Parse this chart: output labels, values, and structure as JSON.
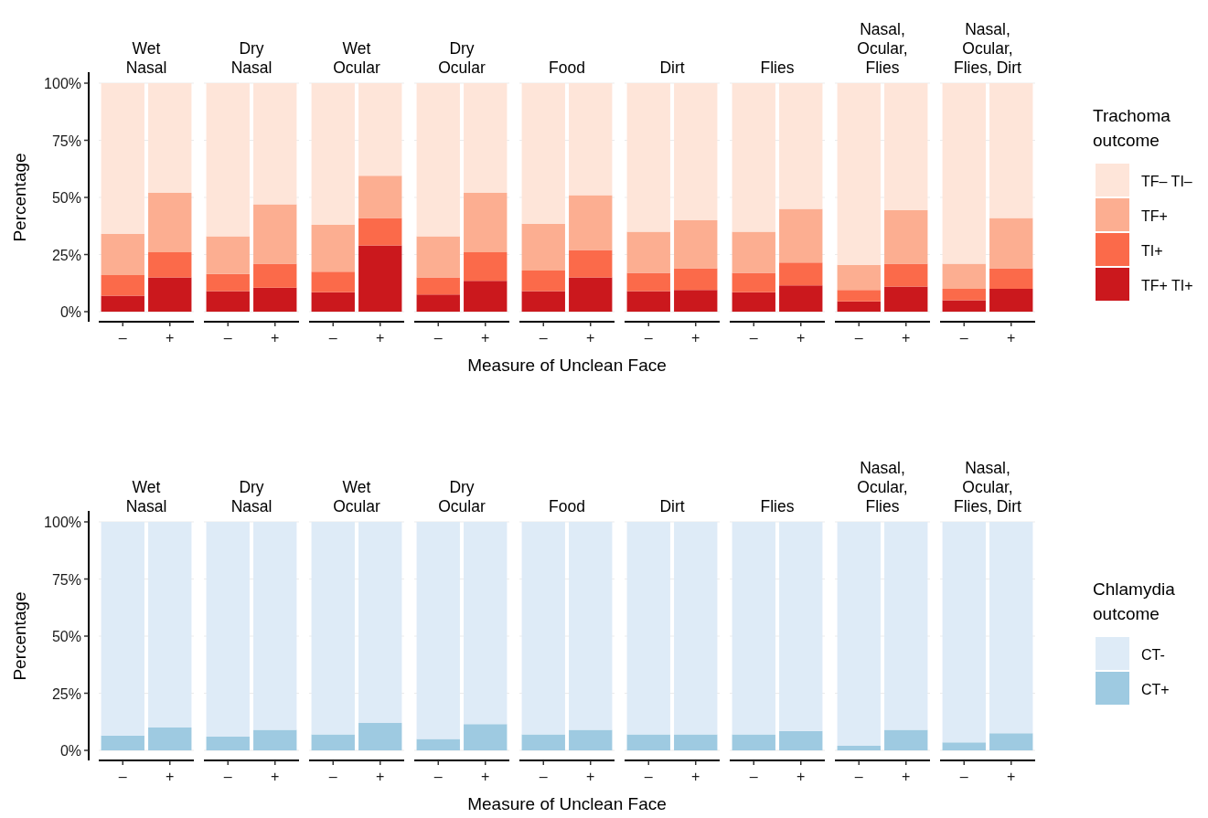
{
  "chart_data": [
    {
      "type": "bar",
      "title": "Wet\nNasal",
      "ylabel": "Percentage",
      "categories": [
        "–",
        "+"
      ],
      "stacked": true,
      "ylim": [
        0,
        100
      ],
      "yticks": [
        {
          "value": 0,
          "label": "0%"
        },
        {
          "value": 25,
          "label": "25%"
        },
        {
          "value": 50,
          "label": "50%"
        },
        {
          "value": 75,
          "label": "75%"
        },
        {
          "value": 100,
          "label": "100%"
        }
      ],
      "grid": "y",
      "series": [
        {
          "color": "#cb181d",
          "values": [
            7,
            15
          ]
        },
        {
          "color": "#fb6a4a",
          "values": [
            9,
            11
          ]
        },
        {
          "color": "#fcae91",
          "values": [
            18,
            26
          ]
        },
        {
          "color": "#fee5d9",
          "values": [
            66,
            48
          ]
        }
      ]
    },
    {
      "type": "bar",
      "title": "Dry\nNasal",
      "categories": [
        "–",
        "+"
      ],
      "stacked": true,
      "ylim": [
        0,
        100
      ],
      "yticks": [
        {
          "value": 0,
          "label": null
        },
        {
          "value": 25,
          "label": null
        },
        {
          "value": 50,
          "label": null
        },
        {
          "value": 75,
          "label": null
        },
        {
          "value": 100,
          "label": null
        }
      ],
      "grid": "y",
      "tick_labels": "x",
      "series": [
        {
          "color": "#cb181d",
          "values": [
            9,
            10.5
          ]
        },
        {
          "color": "#fb6a4a",
          "values": [
            7.5,
            10.5
          ]
        },
        {
          "color": "#fcae91",
          "values": [
            16.5,
            26
          ]
        },
        {
          "color": "#fee5d9",
          "values": [
            67,
            53
          ]
        }
      ]
    },
    {
      "type": "bar",
      "title": "Wet\nOcular",
      "categories": [
        "–",
        "+"
      ],
      "stacked": true,
      "ylim": [
        0,
        100
      ],
      "yticks": [
        {
          "value": 0,
          "label": null
        },
        {
          "value": 25,
          "label": null
        },
        {
          "value": 50,
          "label": null
        },
        {
          "value": 75,
          "label": null
        },
        {
          "value": 100,
          "label": null
        }
      ],
      "grid": "y",
      "tick_labels": "x",
      "series": [
        {
          "color": "#cb181d",
          "values": [
            8.5,
            29
          ]
        },
        {
          "color": "#fb6a4a",
          "values": [
            9,
            12
          ]
        },
        {
          "color": "#fcae91",
          "values": [
            20.5,
            18.5
          ]
        },
        {
          "color": "#fee5d9",
          "values": [
            62,
            40.5
          ]
        }
      ]
    },
    {
      "type": "bar",
      "title": "Dry\nOcular",
      "categories": [
        "–",
        "+"
      ],
      "stacked": true,
      "ylim": [
        0,
        100
      ],
      "yticks": [
        {
          "value": 0,
          "label": null
        },
        {
          "value": 25,
          "label": null
        },
        {
          "value": 50,
          "label": null
        },
        {
          "value": 75,
          "label": null
        },
        {
          "value": 100,
          "label": null
        }
      ],
      "grid": "y",
      "tick_labels": "x",
      "series": [
        {
          "color": "#cb181d",
          "values": [
            7.5,
            13.5
          ]
        },
        {
          "color": "#fb6a4a",
          "values": [
            7.5,
            12.5
          ]
        },
        {
          "color": "#fcae91",
          "values": [
            18,
            26
          ]
        },
        {
          "color": "#fee5d9",
          "values": [
            67,
            48
          ]
        }
      ]
    },
    {
      "type": "bar",
      "title": "Food",
      "xlabel": "Measure of Unclean Face",
      "categories": [
        "–",
        "+"
      ],
      "stacked": true,
      "ylim": [
        0,
        100
      ],
      "yticks": [
        {
          "value": 0,
          "label": null
        },
        {
          "value": 25,
          "label": null
        },
        {
          "value": 50,
          "label": null
        },
        {
          "value": 75,
          "label": null
        },
        {
          "value": 100,
          "label": null
        }
      ],
      "grid": "y",
      "tick_labels": "x",
      "series": [
        {
          "color": "#cb181d",
          "values": [
            9,
            15
          ]
        },
        {
          "color": "#fb6a4a",
          "values": [
            9,
            12
          ]
        },
        {
          "color": "#fcae91",
          "values": [
            20.5,
            24
          ]
        },
        {
          "color": "#fee5d9",
          "values": [
            61.5,
            49
          ]
        }
      ]
    },
    {
      "type": "bar",
      "title": "Dirt",
      "categories": [
        "–",
        "+"
      ],
      "stacked": true,
      "ylim": [
        0,
        100
      ],
      "yticks": [
        {
          "value": 0,
          "label": null
        },
        {
          "value": 25,
          "label": null
        },
        {
          "value": 50,
          "label": null
        },
        {
          "value": 75,
          "label": null
        },
        {
          "value": 100,
          "label": null
        }
      ],
      "grid": "y",
      "tick_labels": "x",
      "series": [
        {
          "color": "#cb181d",
          "values": [
            9,
            9.5
          ]
        },
        {
          "color": "#fb6a4a",
          "values": [
            8,
            9.5
          ]
        },
        {
          "color": "#fcae91",
          "values": [
            18,
            21
          ]
        },
        {
          "color": "#fee5d9",
          "values": [
            65,
            60
          ]
        }
      ]
    },
    {
      "type": "bar",
      "title": "Flies",
      "categories": [
        "–",
        "+"
      ],
      "stacked": true,
      "ylim": [
        0,
        100
      ],
      "yticks": [
        {
          "value": 0,
          "label": null
        },
        {
          "value": 25,
          "label": null
        },
        {
          "value": 50,
          "label": null
        },
        {
          "value": 75,
          "label": null
        },
        {
          "value": 100,
          "label": null
        }
      ],
      "grid": "y",
      "tick_labels": "x",
      "series": [
        {
          "color": "#cb181d",
          "values": [
            8.5,
            11.5
          ]
        },
        {
          "color": "#fb6a4a",
          "values": [
            8.5,
            10
          ]
        },
        {
          "color": "#fcae91",
          "values": [
            18,
            23.5
          ]
        },
        {
          "color": "#fee5d9",
          "values": [
            65,
            55
          ]
        }
      ]
    },
    {
      "type": "bar",
      "title": "Nasal,\nOcular,\nFlies",
      "categories": [
        "–",
        "+"
      ],
      "stacked": true,
      "ylim": [
        0,
        100
      ],
      "yticks": [
        {
          "value": 0,
          "label": null
        },
        {
          "value": 25,
          "label": null
        },
        {
          "value": 50,
          "label": null
        },
        {
          "value": 75,
          "label": null
        },
        {
          "value": 100,
          "label": null
        }
      ],
      "grid": "y",
      "tick_labels": "x",
      "series": [
        {
          "color": "#cb181d",
          "values": [
            4.5,
            11
          ]
        },
        {
          "color": "#fb6a4a",
          "values": [
            5,
            10
          ]
        },
        {
          "color": "#fcae91",
          "values": [
            11,
            23.5
          ]
        },
        {
          "color": "#fee5d9",
          "values": [
            79.5,
            55.5
          ]
        }
      ]
    },
    {
      "type": "bar",
      "title": "Nasal,\nOcular,\nFlies, Dirt",
      "legend_title": "Trachoma\noutcome",
      "legend": "right",
      "categories": [
        "–",
        "+"
      ],
      "stacked": true,
      "ylim": [
        0,
        100
      ],
      "yticks": [
        {
          "value": 0,
          "label": null
        },
        {
          "value": 25,
          "label": null
        },
        {
          "value": 50,
          "label": null
        },
        {
          "value": 75,
          "label": null
        },
        {
          "value": 100,
          "label": null
        }
      ],
      "grid": "y",
      "tick_labels": "x",
      "series": [
        {
          "name": "TF+ TI+",
          "color": "#cb181d",
          "values": [
            5,
            10
          ]
        },
        {
          "name": "TI+",
          "color": "#fb6a4a",
          "values": [
            5,
            9
          ]
        },
        {
          "name": "TF+",
          "color": "#fcae91",
          "values": [
            11,
            22
          ]
        },
        {
          "name": "TF– TI–",
          "color": "#fee5d9",
          "values": [
            79,
            59
          ]
        }
      ]
    },
    {
      "type": "bar",
      "title": "Wet\nNasal",
      "ylabel": "Percentage",
      "categories": [
        "–",
        "+"
      ],
      "stacked": true,
      "ylim": [
        0,
        100
      ],
      "yticks": [
        {
          "value": 0,
          "label": "0%"
        },
        {
          "value": 25,
          "label": "25%"
        },
        {
          "value": 50,
          "label": "50%"
        },
        {
          "value": 75,
          "label": "75%"
        },
        {
          "value": 100,
          "label": "100%"
        }
      ],
      "grid": "y",
      "series": [
        {
          "color": "#9ecae1",
          "values": [
            6.5,
            10
          ]
        },
        {
          "color": "#deebf7",
          "values": [
            93.5,
            90
          ]
        }
      ]
    },
    {
      "type": "bar",
      "title": "Dry\nNasal",
      "categories": [
        "–",
        "+"
      ],
      "stacked": true,
      "ylim": [
        0,
        100
      ],
      "yticks": [
        {
          "value": 0,
          "label": null
        },
        {
          "value": 25,
          "label": null
        },
        {
          "value": 50,
          "label": null
        },
        {
          "value": 75,
          "label": null
        },
        {
          "value": 100,
          "label": null
        }
      ],
      "grid": "y",
      "tick_labels": "x",
      "series": [
        {
          "color": "#9ecae1",
          "values": [
            6,
            9
          ]
        },
        {
          "color": "#deebf7",
          "values": [
            94,
            91
          ]
        }
      ]
    },
    {
      "type": "bar",
      "title": "Wet\nOcular",
      "categories": [
        "–",
        "+"
      ],
      "stacked": true,
      "ylim": [
        0,
        100
      ],
      "yticks": [
        {
          "value": 0,
          "label": null
        },
        {
          "value": 25,
          "label": null
        },
        {
          "value": 50,
          "label": null
        },
        {
          "value": 75,
          "label": null
        },
        {
          "value": 100,
          "label": null
        }
      ],
      "grid": "y",
      "tick_labels": "x",
      "series": [
        {
          "color": "#9ecae1",
          "values": [
            7,
            12
          ]
        },
        {
          "color": "#deebf7",
          "values": [
            93,
            88
          ]
        }
      ]
    },
    {
      "type": "bar",
      "title": "Dry\nOcular",
      "categories": [
        "–",
        "+"
      ],
      "stacked": true,
      "ylim": [
        0,
        100
      ],
      "yticks": [
        {
          "value": 0,
          "label": null
        },
        {
          "value": 25,
          "label": null
        },
        {
          "value": 50,
          "label": null
        },
        {
          "value": 75,
          "label": null
        },
        {
          "value": 100,
          "label": null
        }
      ],
      "grid": "y",
      "tick_labels": "x",
      "series": [
        {
          "color": "#9ecae1",
          "values": [
            5,
            11.5
          ]
        },
        {
          "color": "#deebf7",
          "values": [
            95,
            88.5
          ]
        }
      ]
    },
    {
      "type": "bar",
      "title": "Food",
      "xlabel": "Measure of Unclean Face",
      "categories": [
        "–",
        "+"
      ],
      "stacked": true,
      "ylim": [
        0,
        100
      ],
      "yticks": [
        {
          "value": 0,
          "label": null
        },
        {
          "value": 25,
          "label": null
        },
        {
          "value": 50,
          "label": null
        },
        {
          "value": 75,
          "label": null
        },
        {
          "value": 100,
          "label": null
        }
      ],
      "grid": "y",
      "tick_labels": "x",
      "series": [
        {
          "color": "#9ecae1",
          "values": [
            7,
            9
          ]
        },
        {
          "color": "#deebf7",
          "values": [
            93,
            91
          ]
        }
      ]
    },
    {
      "type": "bar",
      "title": "Dirt",
      "categories": [
        "–",
        "+"
      ],
      "stacked": true,
      "ylim": [
        0,
        100
      ],
      "yticks": [
        {
          "value": 0,
          "label": null
        },
        {
          "value": 25,
          "label": null
        },
        {
          "value": 50,
          "label": null
        },
        {
          "value": 75,
          "label": null
        },
        {
          "value": 100,
          "label": null
        }
      ],
      "grid": "y",
      "tick_labels": "x",
      "series": [
        {
          "color": "#9ecae1",
          "values": [
            7,
            7
          ]
        },
        {
          "color": "#deebf7",
          "values": [
            93,
            93
          ]
        }
      ]
    },
    {
      "type": "bar",
      "title": "Flies",
      "categories": [
        "–",
        "+"
      ],
      "stacked": true,
      "ylim": [
        0,
        100
      ],
      "yticks": [
        {
          "value": 0,
          "label": null
        },
        {
          "value": 25,
          "label": null
        },
        {
          "value": 50,
          "label": null
        },
        {
          "value": 75,
          "label": null
        },
        {
          "value": 100,
          "label": null
        }
      ],
      "grid": "y",
      "tick_labels": "x",
      "series": [
        {
          "color": "#9ecae1",
          "values": [
            7,
            8.5
          ]
        },
        {
          "color": "#deebf7",
          "values": [
            93,
            91.5
          ]
        }
      ]
    },
    {
      "type": "bar",
      "title": "Nasal,\nOcular,\nFlies",
      "categories": [
        "–",
        "+"
      ],
      "stacked": true,
      "ylim": [
        0,
        100
      ],
      "yticks": [
        {
          "value": 0,
          "label": null
        },
        {
          "value": 25,
          "label": null
        },
        {
          "value": 50,
          "label": null
        },
        {
          "value": 75,
          "label": null
        },
        {
          "value": 100,
          "label": null
        }
      ],
      "grid": "y",
      "tick_labels": "x",
      "series": [
        {
          "color": "#9ecae1",
          "values": [
            2,
            9
          ]
        },
        {
          "color": "#deebf7",
          "values": [
            98,
            91
          ]
        }
      ]
    },
    {
      "type": "bar",
      "title": "Nasal,\nOcular,\nFlies, Dirt",
      "legend_title": "Chlamydia\noutcome",
      "legend": "right",
      "categories": [
        "–",
        "+"
      ],
      "stacked": true,
      "ylim": [
        0,
        100
      ],
      "yticks": [
        {
          "value": 0,
          "label": null
        },
        {
          "value": 25,
          "label": null
        },
        {
          "value": 50,
          "label": null
        },
        {
          "value": 75,
          "label": null
        },
        {
          "value": 100,
          "label": null
        }
      ],
      "grid": "y",
      "tick_labels": "x",
      "series": [
        {
          "name": "CT+",
          "color": "#9ecae1",
          "values": [
            3.5,
            7.5
          ]
        },
        {
          "name": "CT-",
          "color": "#deebf7",
          "values": [
            96.5,
            92.5
          ]
        }
      ]
    }
  ]
}
